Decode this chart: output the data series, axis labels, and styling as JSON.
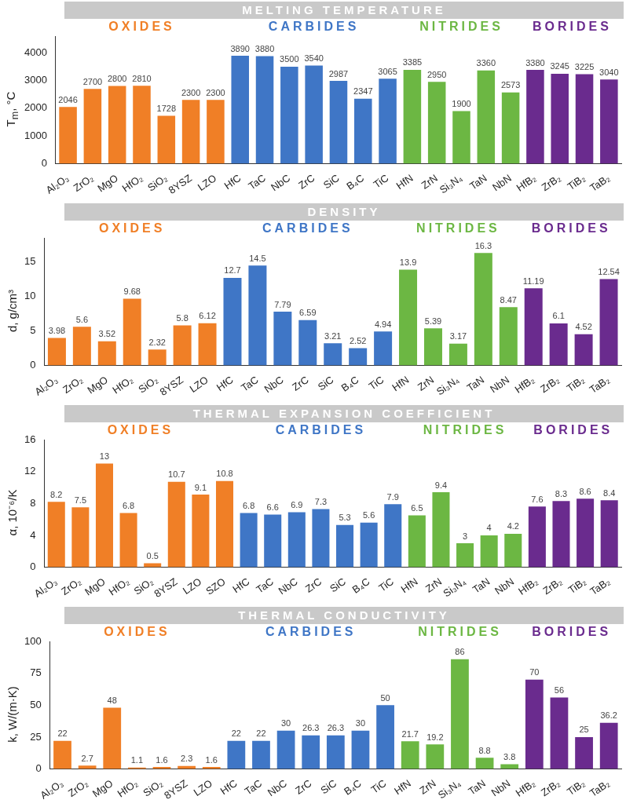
{
  "chart_data": [
    {
      "type": "bar",
      "title": "MELTING TEMPERATURE",
      "ylabel": "T$_{m}$, °C",
      "categories": [
        "Al₂O₃",
        "ZrO₂",
        "MgO",
        "HfO₂",
        "SiO₂",
        "8YSZ",
        "LZO",
        "HfC",
        "TaC",
        "NbC",
        "ZrC",
        "SiC",
        "B₄C",
        "TiC",
        "HfN",
        "ZrN",
        "Si₃N₄",
        "TaN",
        "NbN",
        "HfB₂",
        "ZrB₂",
        "TiB₂",
        "TaB₂"
      ],
      "series": [
        {
          "name": "OXIDES",
          "color": "#f07f26",
          "values": [
            2046,
            2700,
            2800,
            2810,
            1728,
            2300,
            2300,
            null,
            null,
            null,
            null,
            null,
            null,
            null,
            null,
            null,
            null,
            null,
            null,
            null,
            null,
            null,
            null
          ]
        },
        {
          "name": "CARBIDES",
          "color": "#3f76c6",
          "values": [
            null,
            null,
            null,
            null,
            null,
            null,
            null,
            3890,
            3880,
            3500,
            3540,
            2987,
            2347,
            3065,
            null,
            null,
            null,
            null,
            null,
            null,
            null,
            null,
            null
          ]
        },
        {
          "name": "NITRIDES",
          "color": "#6cb743",
          "values": [
            null,
            null,
            null,
            null,
            null,
            null,
            null,
            null,
            null,
            null,
            null,
            null,
            null,
            null,
            3385,
            2950,
            1900,
            3360,
            2573,
            null,
            null,
            null,
            null
          ]
        },
        {
          "name": "BORIDES",
          "color": "#6a2b8e",
          "values": [
            null,
            null,
            null,
            null,
            null,
            null,
            null,
            null,
            null,
            null,
            null,
            null,
            null,
            null,
            null,
            null,
            null,
            null,
            null,
            3380,
            3245,
            3225,
            3040
          ]
        }
      ],
      "ylim": [
        0,
        4600
      ],
      "yticks": [
        0,
        1000,
        2000,
        3000,
        4000
      ],
      "data_labels": true,
      "grid": false,
      "legend": false
    },
    {
      "type": "bar",
      "title": "DENSITY",
      "ylabel": "d, g/cm³",
      "categories": [
        "Al₂O₃",
        "ZrO₂",
        "MgO",
        "HfO₂",
        "SiO₂",
        "8YSZ",
        "LZO",
        "HfC",
        "TaC",
        "NbC",
        "ZrC",
        "SiC",
        "B₄C",
        "TiC",
        "HfN",
        "ZrN",
        "Si₃N₄",
        "TaN",
        "NbN",
        "HfB₂",
        "ZrB₂",
        "TiB₂",
        "TaB₂"
      ],
      "series": [
        {
          "name": "OXIDES",
          "color": "#f07f26",
          "values": [
            3.98,
            5.6,
            3.52,
            9.68,
            2.32,
            5.8,
            6.12,
            null,
            null,
            null,
            null,
            null,
            null,
            null,
            null,
            null,
            null,
            null,
            null,
            null,
            null,
            null,
            null
          ]
        },
        {
          "name": "CARBIDES",
          "color": "#3f76c6",
          "values": [
            null,
            null,
            null,
            null,
            null,
            null,
            null,
            12.7,
            14.5,
            7.79,
            6.59,
            3.21,
            2.52,
            4.94,
            null,
            null,
            null,
            null,
            null,
            null,
            null,
            null,
            null
          ]
        },
        {
          "name": "NITRIDES",
          "color": "#6cb743",
          "values": [
            null,
            null,
            null,
            null,
            null,
            null,
            null,
            null,
            null,
            null,
            null,
            null,
            null,
            null,
            13.9,
            5.39,
            3.17,
            16.3,
            8.47,
            null,
            null,
            null,
            null
          ]
        },
        {
          "name": "BORIDES",
          "color": "#6a2b8e",
          "values": [
            null,
            null,
            null,
            null,
            null,
            null,
            null,
            null,
            null,
            null,
            null,
            null,
            null,
            null,
            null,
            null,
            null,
            null,
            null,
            11.19,
            6.1,
            4.52,
            12.54
          ]
        }
      ],
      "ylim": [
        0,
        18.5
      ],
      "yticks": [
        0,
        5,
        10,
        15
      ],
      "data_labels": true,
      "grid": false,
      "legend": false
    },
    {
      "type": "bar",
      "title": "THERMAL EXPANSION COEFFICIENT",
      "ylabel": "α, 10⁻⁶/K",
      "categories": [
        "Al₂O₃",
        "ZrO₂",
        "MgO",
        "HfO₂",
        "SiO₂",
        "8YSZ",
        "LZO",
        "SZO",
        "HfC",
        "TaC",
        "NbC",
        "ZrC",
        "SiC",
        "B₄C",
        "TiC",
        "HfN",
        "ZrN",
        "Si₃N₄",
        "TaN",
        "NbN",
        "HfB₂",
        "ZrB₂",
        "TiB₂",
        "TaB₂"
      ],
      "series": [
        {
          "name": "OXIDES",
          "color": "#f07f26",
          "values": [
            8.2,
            7.5,
            13,
            6.8,
            0.5,
            10.7,
            9.1,
            10.8,
            null,
            null,
            null,
            null,
            null,
            null,
            null,
            null,
            null,
            null,
            null,
            null,
            null,
            null,
            null,
            null
          ]
        },
        {
          "name": "CARBIDES",
          "color": "#3f76c6",
          "values": [
            null,
            null,
            null,
            null,
            null,
            null,
            null,
            null,
            6.8,
            6.6,
            6.9,
            7.3,
            5.3,
            5.6,
            7.9,
            null,
            null,
            null,
            null,
            null,
            null,
            null,
            null,
            null
          ]
        },
        {
          "name": "NITRIDES",
          "color": "#6cb743",
          "values": [
            null,
            null,
            null,
            null,
            null,
            null,
            null,
            null,
            null,
            null,
            null,
            null,
            null,
            null,
            null,
            6.5,
            9.4,
            3,
            4,
            4.2,
            null,
            null,
            null,
            null
          ]
        },
        {
          "name": "BORIDES",
          "color": "#6a2b8e",
          "values": [
            null,
            null,
            null,
            null,
            null,
            null,
            null,
            null,
            null,
            null,
            null,
            null,
            null,
            null,
            null,
            null,
            null,
            null,
            null,
            null,
            7.6,
            8.3,
            8.6,
            8.4
          ]
        }
      ],
      "ylim": [
        0,
        16
      ],
      "yticks": [
        0,
        4,
        8,
        12,
        16
      ],
      "data_labels": true,
      "grid": false,
      "legend": false
    },
    {
      "type": "bar",
      "title": "THERMAL CONDUCTIVITY",
      "ylabel": "k, W/(m·K)",
      "categories": [
        "Al₂O₃",
        "ZrO₂",
        "MgO",
        "HfO₂",
        "SiO₂",
        "8YSZ",
        "LZO",
        "HfC",
        "TaC",
        "NbC",
        "ZrC",
        "SiC",
        "B₄C",
        "TiC",
        "HfN",
        "ZrN",
        "Si₃N₄",
        "TaN",
        "NbN",
        "HfB₂",
        "ZrB₂",
        "TiB₂",
        "TaB₂"
      ],
      "series": [
        {
          "name": "OXIDES",
          "color": "#f07f26",
          "values": [
            22,
            2.7,
            48,
            1.1,
            1.6,
            2.3,
            1.6,
            null,
            null,
            null,
            null,
            null,
            null,
            null,
            null,
            null,
            null,
            null,
            null,
            null,
            null,
            null,
            null
          ]
        },
        {
          "name": "CARBIDES",
          "color": "#3f76c6",
          "values": [
            null,
            null,
            null,
            null,
            null,
            null,
            null,
            22,
            22,
            30,
            26.3,
            26.3,
            30,
            50,
            null,
            null,
            null,
            null,
            null,
            null,
            null,
            null,
            null
          ]
        },
        {
          "name": "NITRIDES",
          "color": "#6cb743",
          "values": [
            null,
            null,
            null,
            null,
            null,
            null,
            null,
            null,
            null,
            null,
            null,
            null,
            null,
            null,
            21.7,
            19.2,
            86,
            8.8,
            3.8,
            null,
            null,
            null,
            null
          ]
        },
        {
          "name": "BORIDES",
          "color": "#6a2b8e",
          "values": [
            null,
            null,
            null,
            null,
            null,
            null,
            null,
            null,
            null,
            null,
            null,
            null,
            null,
            null,
            null,
            null,
            null,
            null,
            null,
            70,
            56,
            25,
            36.2
          ]
        }
      ],
      "ylim": [
        0,
        100
      ],
      "yticks": [
        0,
        25,
        50,
        75,
        100
      ],
      "data_labels": true,
      "grid": false,
      "legend": false
    }
  ]
}
